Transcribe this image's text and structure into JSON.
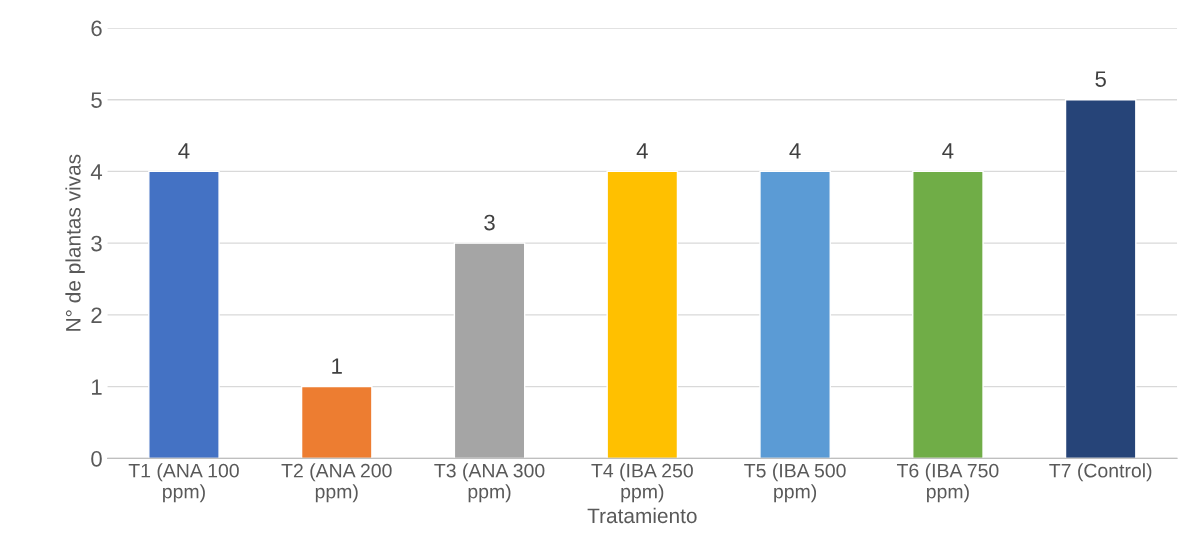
{
  "chart_data": {
    "type": "bar",
    "categories": [
      "T1 (ANA 100\nppm)",
      "T2 (ANA 200\nppm)",
      "T3 (ANA 300\nppm)",
      "T4 (IBA 250\nppm)",
      "T5 (IBA 500\nppm)",
      "T6 (IBA 750\nppm)",
      "T7 (Control)"
    ],
    "values": [
      4,
      1,
      3,
      4,
      4,
      4,
      5
    ],
    "colors": [
      "#4472c4",
      "#ed7d31",
      "#a5a5a5",
      "#ffc000",
      "#5b9bd5",
      "#70ad47",
      "#264478"
    ],
    "xlabel": "Tratamiento",
    "ylabel": "N° de plantas vivas",
    "ylim": [
      0,
      6
    ],
    "yticks": [
      0,
      1,
      2,
      3,
      4,
      5,
      6
    ],
    "grid": "y",
    "data_labels": true
  }
}
